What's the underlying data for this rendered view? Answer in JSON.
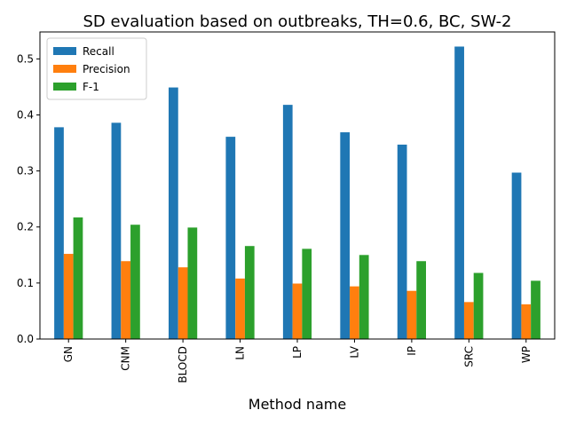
{
  "chart_data": {
    "type": "bar",
    "title": "SD evaluation based on outbreaks, TH=0.6, BC, SW-2",
    "xlabel": "Method name",
    "ylabel": "",
    "categories": [
      "GN",
      "CNM",
      "BLOCD",
      "LN",
      "LP",
      "LV",
      "IP",
      "SRC",
      "WP"
    ],
    "series": [
      {
        "name": "Recall",
        "color": "#1f77b4",
        "values": [
          0.378,
          0.386,
          0.449,
          0.361,
          0.418,
          0.369,
          0.347,
          0.522,
          0.297
        ]
      },
      {
        "name": "Precision",
        "color": "#ff7f0e",
        "values": [
          0.152,
          0.139,
          0.128,
          0.108,
          0.099,
          0.094,
          0.086,
          0.066,
          0.062
        ]
      },
      {
        "name": "F-1",
        "color": "#2ca02c",
        "values": [
          0.217,
          0.204,
          0.199,
          0.166,
          0.161,
          0.15,
          0.139,
          0.118,
          0.104
        ]
      }
    ],
    "ylim": [
      0,
      0.5481
    ],
    "yticks": [
      0.0,
      0.1,
      0.2,
      0.3,
      0.4,
      0.5
    ],
    "ytick_labels": [
      "0.0",
      "0.1",
      "0.2",
      "0.3",
      "0.4",
      "0.5"
    ],
    "legend_position": "top-left",
    "grid": false
  }
}
